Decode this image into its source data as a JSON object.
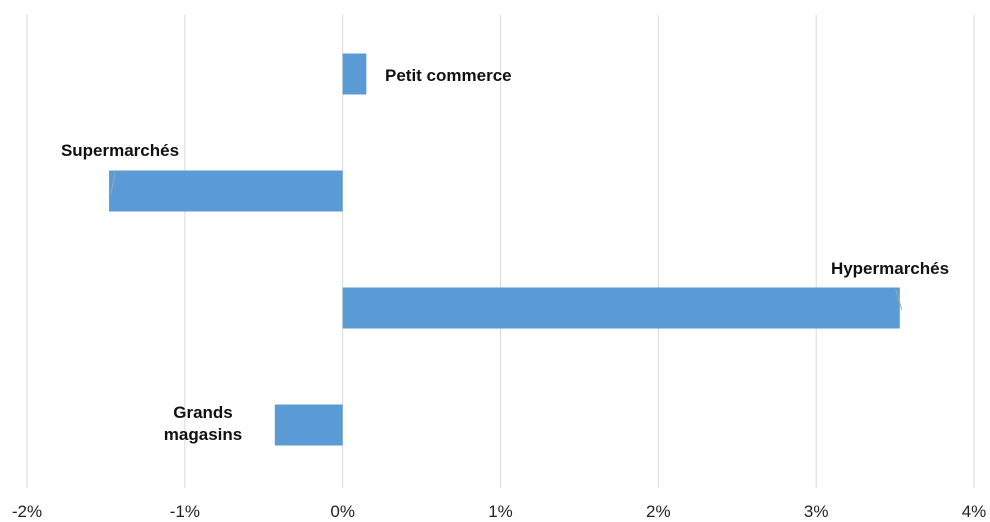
{
  "chart_data": {
    "type": "bar",
    "orientation": "horizontal",
    "categories": [
      "Petit commerce",
      "Supermarchés",
      "Hypermarchés",
      "Grands magasins"
    ],
    "values": [
      0.15,
      -1.48,
      3.53,
      -0.43
    ],
    "data_labels": [
      [
        "Petit commerce"
      ],
      [
        "Supermarchés"
      ],
      [
        "Hypermarchés"
      ],
      [
        "Grands",
        "magasins"
      ]
    ],
    "xlim": [
      -2,
      4
    ],
    "x_ticks": [
      -2,
      -1,
      0,
      1,
      2,
      3,
      4
    ],
    "x_tick_labels": [
      "-2%",
      "-1%",
      "0%",
      "1%",
      "2%",
      "3%",
      "4%"
    ],
    "title": "",
    "xlabel": "",
    "ylabel": "",
    "grid": "vertical",
    "legend": "none",
    "bar_color": "#5b9bd5",
    "grid_color": "#d9d9d9"
  }
}
